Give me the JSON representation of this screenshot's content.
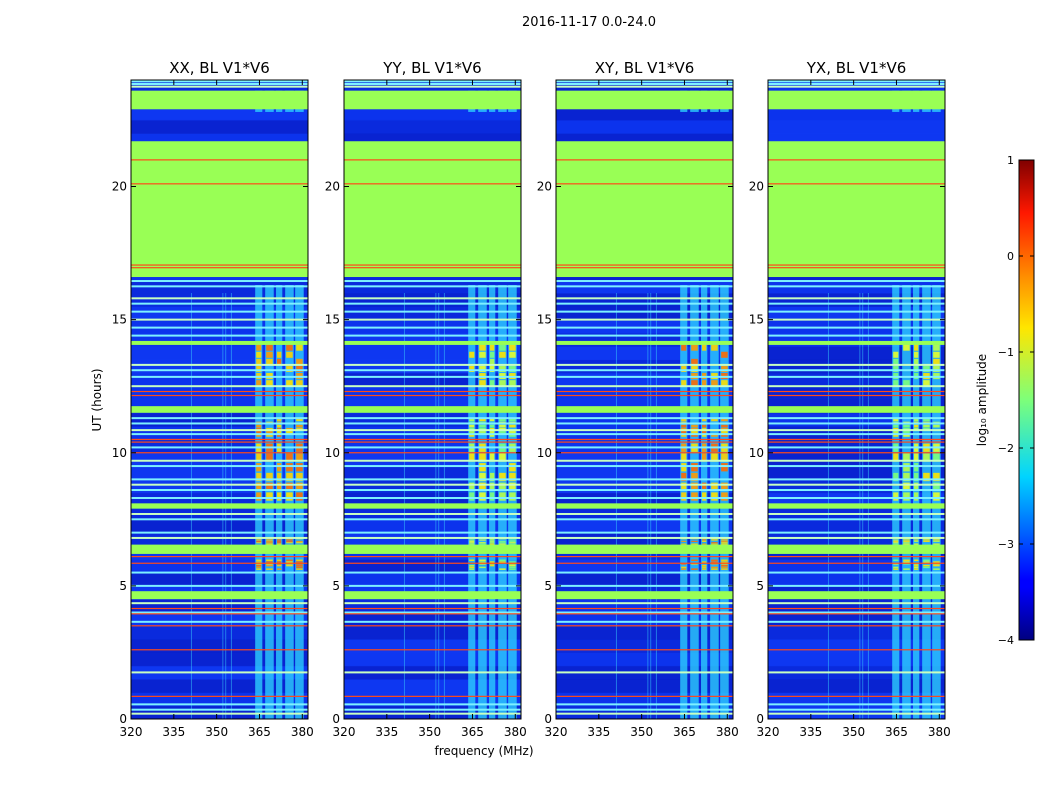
{
  "chart_data": {
    "type": "heatmap",
    "title": "2016-11-17 0.0-24.0",
    "xlabel": "frequency (MHz)",
    "ylabel": "UT (hours)",
    "xlim": [
      320,
      382
    ],
    "ylim": [
      0,
      24
    ],
    "x_ticks": [
      320,
      335,
      350,
      365,
      380
    ],
    "y_ticks": [
      0,
      5,
      10,
      15,
      20
    ],
    "panels": [
      {
        "title": "XX, BL V1*V6",
        "rfi_intensity": 1.0
      },
      {
        "title": "YY, BL V1*V6",
        "rfi_intensity": 0.55
      },
      {
        "title": "XY, BL V1*V6",
        "rfi_intensity": 0.95
      },
      {
        "title": "YX, BL V1*V6",
        "rfi_intensity": 0.5
      }
    ],
    "flagged_time_ranges_hours": [
      [
        16.6,
        21.7
      ],
      [
        22.9,
        23.6
      ],
      [
        7.9,
        8.1
      ],
      [
        6.2,
        6.55
      ],
      [
        11.5,
        11.75
      ],
      [
        14.05,
        14.2
      ],
      [
        4.5,
        4.8
      ]
    ],
    "red_flag_lines_hours": [
      0.85,
      2.6,
      3.5,
      3.95,
      4.15,
      5.85,
      6.1,
      10.0,
      10.4,
      10.5,
      12.15,
      12.3,
      16.95,
      17.05,
      20.1,
      21.0
    ],
    "horizontal_line_hours": [
      0.2,
      0.35,
      0.55,
      1.75,
      3.65,
      4.0,
      4.35,
      5.0,
      5.5,
      6.8,
      7.0,
      7.5,
      7.7,
      8.3,
      8.6,
      8.8,
      9.0,
      9.5,
      9.7,
      10.2,
      10.7,
      10.85,
      11.1,
      11.3,
      12.5,
      12.85,
      13.1,
      13.3,
      14.4,
      14.7,
      15.0,
      15.3,
      15.6,
      15.8,
      16.25,
      16.45,
      23.75,
      23.85,
      23.95
    ],
    "colorbar": {
      "label": "log₁₀ amplitude",
      "range": [
        -4,
        1
      ],
      "ticks": [
        1,
        0,
        -1,
        -2,
        -3,
        -4
      ],
      "tick_labels": [
        "1",
        "0",
        "−1",
        "−2",
        "−3",
        "−4"
      ],
      "colormap": "jet"
    }
  }
}
